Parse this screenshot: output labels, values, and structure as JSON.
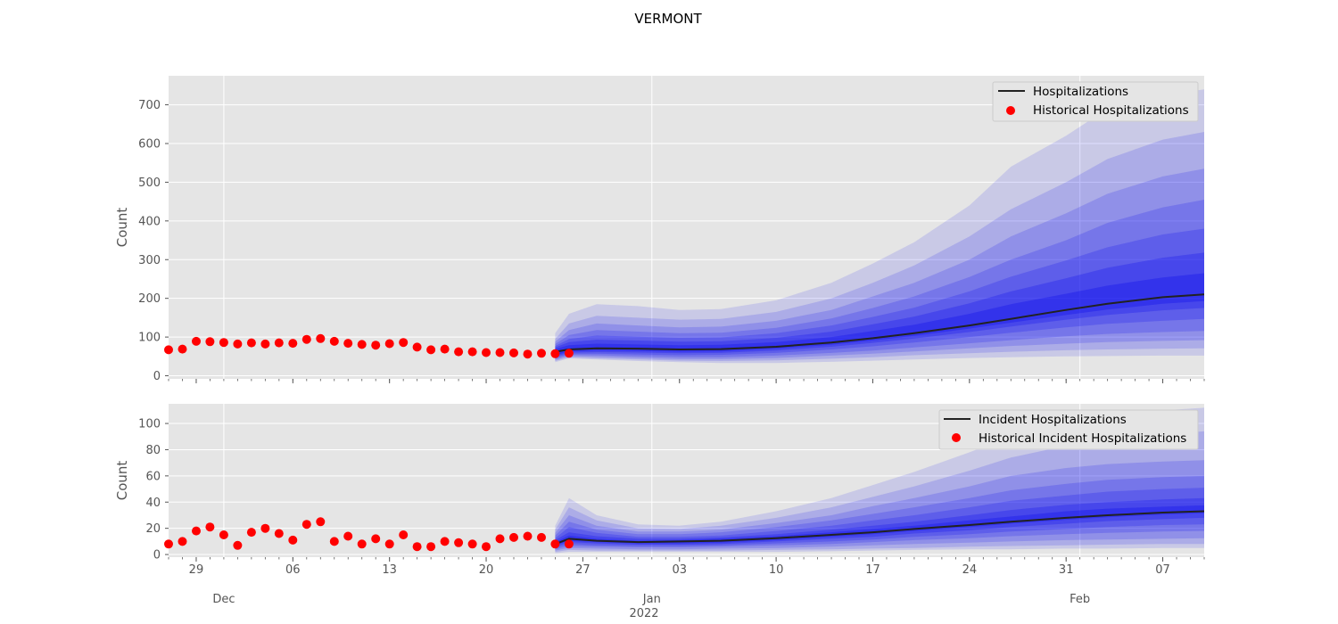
{
  "figure": {
    "title": "VERMONT"
  },
  "colors": {
    "panel_bg": "#e5e5e5",
    "grid": "#ffffff",
    "band": "#0000ee",
    "median": "#222222",
    "historical": "#ff0000",
    "tick_text": "#555555"
  },
  "x_axis": {
    "day_ticks": [
      {
        "date": "2021-11-29",
        "label": "29"
      },
      {
        "date": "2021-12-06",
        "label": "06"
      },
      {
        "date": "2021-12-13",
        "label": "13"
      },
      {
        "date": "2021-12-20",
        "label": "20"
      },
      {
        "date": "2021-12-27",
        "label": "27"
      },
      {
        "date": "2022-01-03",
        "label": "03"
      },
      {
        "date": "2022-01-10",
        "label": "10"
      },
      {
        "date": "2022-01-17",
        "label": "17"
      },
      {
        "date": "2022-01-24",
        "label": "24"
      },
      {
        "date": "2022-01-31",
        "label": "31"
      },
      {
        "date": "2022-02-07",
        "label": "07"
      }
    ],
    "month_ticks": [
      {
        "date": "2021-12-01",
        "label": "Dec"
      },
      {
        "date": "2022-01-01",
        "label": "Jan"
      },
      {
        "date": "2022-02-01",
        "label": "Feb"
      }
    ],
    "year_label": "2022",
    "range": [
      "2021-11-27",
      "2022-02-10"
    ]
  },
  "chart_data": [
    {
      "type": "line",
      "name": "hospitalizations-panel",
      "ylabel": "Count",
      "ylim": [
        -8,
        775
      ],
      "yticks": [
        0,
        100,
        200,
        300,
        400,
        500,
        600,
        700
      ],
      "grid": true,
      "legend_position": "top-right",
      "legend": [
        "Hospitalizations",
        "Historical Hospitalizations"
      ],
      "historical": {
        "name": "Historical Hospitalizations",
        "start_date": "2021-11-27",
        "values": [
          67,
          69,
          89,
          88,
          86,
          82,
          85,
          82,
          85,
          84,
          94,
          96,
          89,
          84,
          81,
          79,
          83,
          86,
          74,
          67,
          69,
          62,
          62,
          60,
          60,
          59,
          56,
          58,
          57,
          58
        ]
      },
      "forecast": {
        "name": "Hospitalizations",
        "dates": [
          "2021-12-25",
          "2021-12-26",
          "2021-12-28",
          "2021-12-31",
          "2022-01-03",
          "2022-01-06",
          "2022-01-10",
          "2022-01-14",
          "2022-01-17",
          "2022-01-20",
          "2022-01-24",
          "2022-01-27",
          "2022-01-31",
          "2022-02-03",
          "2022-02-07",
          "2022-02-10"
        ],
        "median": [
          62,
          68,
          71,
          70,
          68,
          69,
          75,
          86,
          97,
          110,
          130,
          147,
          170,
          186,
          203,
          210
        ],
        "bands": [
          {
            "lower": [
              35,
              45,
              42,
              38,
              35,
              33,
              33,
              36,
              39,
              42,
              46,
              48,
              50,
              51,
              52,
              52
            ],
            "upper": [
              110,
              160,
              185,
              180,
              170,
              172,
              195,
              240,
              290,
              345,
              440,
              540,
              620,
              690,
              725,
              740
            ]
          },
          {
            "lower": [
              38,
              48,
              45,
              42,
              39,
              38,
              40,
              44,
              48,
              53,
              58,
              62,
              66,
              68,
              70,
              71
            ],
            "upper": [
              95,
              135,
              155,
              150,
              145,
              147,
              165,
              200,
              240,
              285,
              360,
              430,
              500,
              560,
              610,
              630
            ]
          },
          {
            "lower": [
              41,
              51,
              49,
              46,
              43,
              43,
              46,
              52,
              57,
              63,
              71,
              77,
              83,
              87,
              90,
              92
            ],
            "upper": [
              88,
              118,
              135,
              130,
              125,
              127,
              142,
              170,
              205,
              240,
              300,
              360,
              420,
              470,
              515,
              535
            ]
          },
          {
            "lower": [
              44,
              54,
              53,
              50,
              48,
              48,
              52,
              59,
              65,
              73,
              84,
              92,
              102,
              108,
              113,
              116
            ],
            "upper": [
              82,
              105,
              118,
              114,
              110,
              111,
              124,
              148,
              175,
              205,
              255,
              300,
              350,
              395,
              435,
              455
            ]
          },
          {
            "lower": [
              47,
              57,
              57,
              55,
              53,
              54,
              59,
              68,
              76,
              86,
              100,
              111,
              125,
              134,
              142,
              147
            ],
            "upper": [
              77,
              95,
              104,
              101,
              98,
              99,
              110,
              130,
              152,
              176,
              218,
              256,
              298,
              332,
              365,
              380
            ]
          },
          {
            "lower": [
              50,
              60,
              61,
              60,
              58,
              59,
              65,
              75,
              85,
              96,
              113,
              127,
              145,
              157,
              169,
              175
            ],
            "upper": [
              73,
              87,
              93,
              91,
              88,
              89,
              98,
              114,
              133,
              153,
              187,
              218,
              252,
              279,
              305,
              318
            ]
          },
          {
            "lower": [
              53,
              63,
              65,
              64,
              62,
              63,
              70,
              80,
              91,
              103,
              122,
              137,
              157,
              171,
              186,
              193
            ],
            "upper": [
              69,
              79,
              83,
              81,
              79,
              80,
              87,
              100,
              116,
              132,
              160,
              185,
              212,
              233,
              254,
              265
            ]
          }
        ]
      }
    },
    {
      "type": "line",
      "name": "incident-panel",
      "ylabel": "Count",
      "ylim": [
        -2,
        115
      ],
      "yticks": [
        0,
        20,
        40,
        60,
        80,
        100
      ],
      "grid": true,
      "legend_position": "top-right",
      "legend": [
        "Incident Hospitalizations",
        "Historical Incident Hospitalizations"
      ],
      "historical": {
        "name": "Historical Incident Hospitalizations",
        "start_date": "2021-11-27",
        "values": [
          8,
          10,
          18,
          21,
          15,
          7,
          17,
          20,
          16,
          11,
          23,
          25,
          10,
          14,
          8,
          12,
          8,
          15,
          6,
          6,
          10,
          9,
          8,
          6,
          12,
          13,
          14,
          13,
          8,
          8
        ]
      },
      "forecast": {
        "name": "Incident Hospitalizations",
        "dates": [
          "2021-12-25",
          "2021-12-26",
          "2021-12-28",
          "2021-12-31",
          "2022-01-03",
          "2022-01-06",
          "2022-01-10",
          "2022-01-14",
          "2022-01-17",
          "2022-01-20",
          "2022-01-24",
          "2022-01-27",
          "2022-01-31",
          "2022-02-03",
          "2022-02-07",
          "2022-02-10"
        ],
        "median": [
          8,
          12,
          10.5,
          9.5,
          10,
          10.5,
          12.5,
          15,
          17,
          19.5,
          22.5,
          25,
          28,
          30,
          32,
          33
        ],
        "bands": [
          {
            "lower": [
              1,
              2,
              2,
              2,
              2,
              2,
              2,
              2.5,
              3,
              3.5,
              4,
              4,
              4.5,
              4.5,
              5,
              5
            ],
            "upper": [
              22,
              43,
              30,
              23,
              22,
              25,
              33,
              43,
              53,
              63,
              78,
              90,
              100,
              106,
              110,
              112
            ]
          },
          {
            "lower": [
              2,
              3.5,
              3,
              3,
              3,
              3,
              3.5,
              4,
              4.5,
              5,
              6,
              6.5,
              7,
              7.5,
              8,
              8
            ],
            "upper": [
              19,
              36,
              26,
              20,
              19.5,
              22,
              28,
              36,
              44,
              52,
              64,
              74,
              83,
              88,
              92,
              94
            ]
          },
          {
            "lower": [
              3,
              5,
              4.5,
              4,
              4,
              4.5,
              5,
              6,
              7,
              8,
              9,
              10,
              11,
              11.5,
              12,
              12.5
            ],
            "upper": [
              16.5,
              30,
              22,
              17.5,
              17.5,
              19,
              24,
              30,
              37,
              43,
              52,
              60,
              66,
              69,
              71,
              72
            ]
          },
          {
            "lower": [
              4,
              6.5,
              6,
              5.5,
              5.5,
              6,
              7,
              8,
              9.5,
              11,
              12.5,
              14,
              15.5,
              16.5,
              17.5,
              18
            ],
            "upper": [
              14.5,
              25,
              19,
              15.5,
              15.5,
              17,
              21,
              26,
              31,
              36,
              43,
              49,
              54,
              57,
              59,
              60
            ]
          },
          {
            "lower": [
              5,
              8,
              7,
              6.5,
              6.5,
              7,
              8.5,
              10,
              11.5,
              13.5,
              15.5,
              17.5,
              19.5,
              21,
              22.5,
              23
            ],
            "upper": [
              12.5,
              21,
              16.5,
              13.5,
              13.5,
              14.5,
              18,
              22,
              26,
              30,
              36,
              41,
              45,
              48,
              50,
              51
            ]
          },
          {
            "lower": [
              6,
              9.5,
              8.5,
              7.5,
              7.5,
              8,
              10,
              12,
              13.5,
              16,
              18.5,
              21,
              23.5,
              25.5,
              27,
              28
            ],
            "upper": [
              11,
              17,
              14,
              12,
              12,
              13,
              15.5,
              19,
              22,
              25,
              30,
              34,
              38,
              40,
              42,
              43
            ]
          },
          {
            "lower": [
              7,
              10.5,
              9.5,
              8.5,
              8.5,
              9,
              11,
              13.5,
              15.5,
              18,
              21,
              23.5,
              26.5,
              28.5,
              30.5,
              31.5
            ],
            "upper": [
              9.5,
              14.5,
              12,
              10.5,
              11,
              12,
              14,
              17,
              19.5,
              22,
              26,
              29,
              33,
              35,
              36.5,
              37.5
            ]
          }
        ]
      }
    }
  ]
}
